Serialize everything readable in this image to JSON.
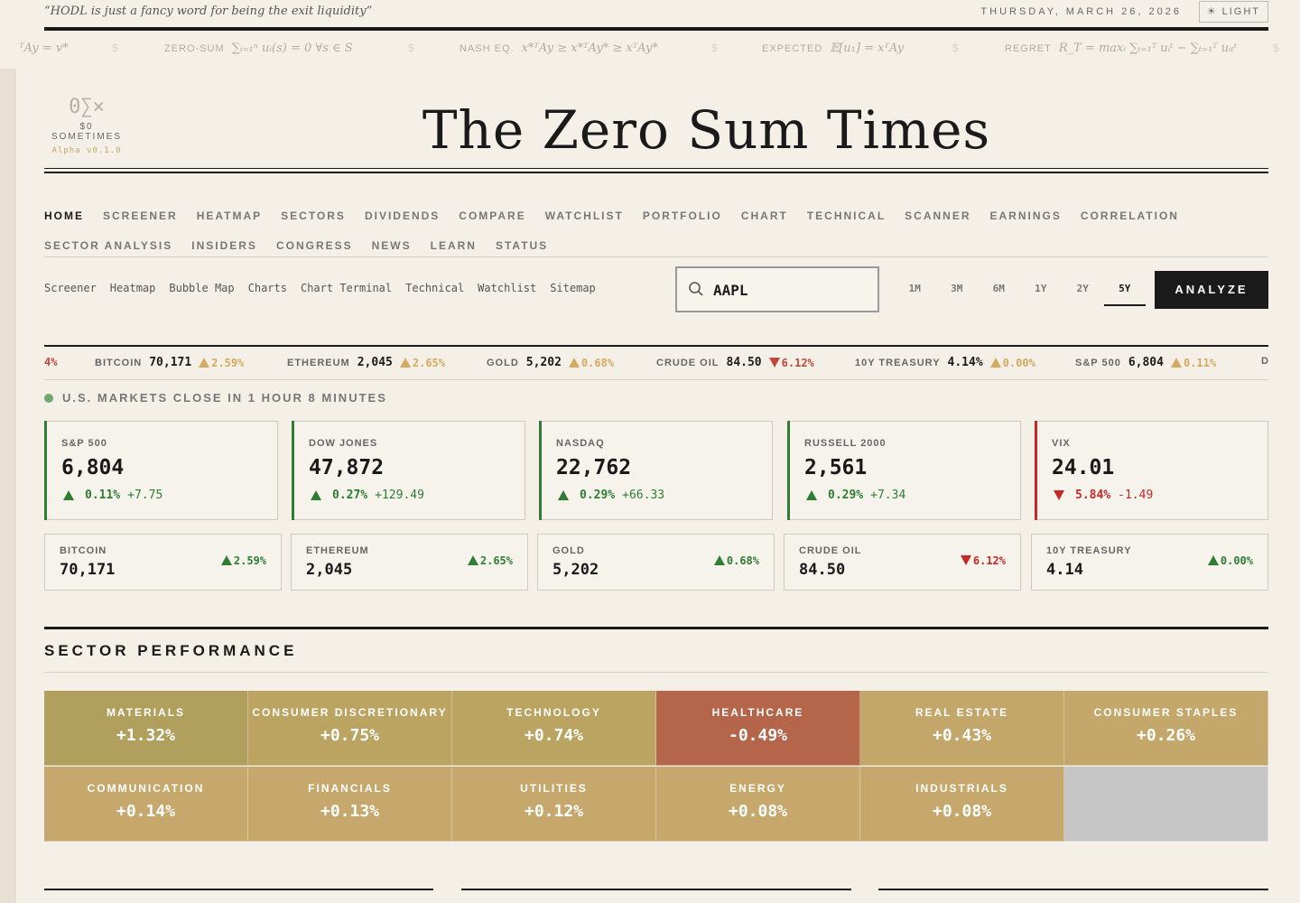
{
  "header": {
    "quote": "“HODL is just a fancy word for being the exit liquidity”",
    "date": "THURSDAY, MARCH 26, 2026",
    "theme_toggle": "☀ LIGHT"
  },
  "formulas": [
    {
      "label": "",
      "eq": "ᵀAy = v*"
    },
    {
      "label": "ZERO-SUM",
      "eq": "∑ᵢ₌₁ⁿ uᵢ(s) = 0 ∀s ∈ S"
    },
    {
      "label": "NASH EQ.",
      "eq": "x*ᵀAy ≥ x*ᵀAy* ≥ xᵀAy*"
    },
    {
      "label": "EXPECTED",
      "eq": "𝔼[u₁] = xᵀAy"
    },
    {
      "label": "REGRET",
      "eq": "R_T = maxᵢ ∑ₜ₌₁ᵀ uᵢᵗ − ∑ₜ₌₁ᵀ uᵢₜᵗ"
    }
  ],
  "formula_separator": "$",
  "logo": {
    "glyph": "0∑×",
    "name": "$0 SOMETIMES",
    "version": "Alpha v0.1.0"
  },
  "masthead": {
    "title": "The Zero Sum Times"
  },
  "nav": {
    "row1": [
      "HOME",
      "SCREENER",
      "HEATMAP",
      "SECTORS",
      "DIVIDENDS",
      "COMPARE",
      "WATCHLIST",
      "PORTFOLIO",
      "CHART",
      "TECHNICAL",
      "SCANNER",
      "EARNINGS",
      "CORRELATION"
    ],
    "row2": [
      "SECTOR ANALYSIS",
      "INSIDERS",
      "CONGRESS",
      "NEWS",
      "LEARN",
      "STATUS"
    ],
    "active": "HOME"
  },
  "subnav": [
    "Screener",
    "Heatmap",
    "Bubble Map",
    "Charts",
    "Chart Terminal",
    "Technical",
    "Watchlist",
    "Sitemap"
  ],
  "search": {
    "value": "AAPL",
    "icon": "search-icon"
  },
  "ranges": {
    "items": [
      "1M",
      "3M",
      "6M",
      "1Y",
      "2Y",
      "5Y"
    ],
    "active": "5Y"
  },
  "analyze_label": "ANALYZE",
  "ticker": {
    "lead_fragment": "4%",
    "items": [
      {
        "name": "BITCOIN",
        "value": "70,171",
        "change": "2.59%",
        "dir": "up"
      },
      {
        "name": "ETHEREUM",
        "value": "2,045",
        "change": "2.65%",
        "dir": "up"
      },
      {
        "name": "GOLD",
        "value": "5,202",
        "change": "0.68%",
        "dir": "up"
      },
      {
        "name": "CRUDE OIL",
        "value": "84.50",
        "change": "6.12%",
        "dir": "down"
      },
      {
        "name": "10Y TREASURY",
        "value": "4.14%",
        "change": "0.00%",
        "dir": "up"
      },
      {
        "name": "S&P 500",
        "value": "6,804",
        "change": "0.11%",
        "dir": "up"
      }
    ],
    "tail_fragment": "D"
  },
  "market_status": "U.S. MARKETS CLOSE IN 1 HOUR 8 MINUTES",
  "indices": [
    {
      "name": "S&P 500",
      "value": "6,804",
      "pct": "0.11%",
      "delta": "+7.75",
      "dir": "up"
    },
    {
      "name": "DOW JONES",
      "value": "47,872",
      "pct": "0.27%",
      "delta": "+129.49",
      "dir": "up"
    },
    {
      "name": "NASDAQ",
      "value": "22,762",
      "pct": "0.29%",
      "delta": "+66.33",
      "dir": "up"
    },
    {
      "name": "RUSSELL 2000",
      "value": "2,561",
      "pct": "0.29%",
      "delta": "+7.34",
      "dir": "up"
    },
    {
      "name": "VIX",
      "value": "24.01",
      "pct": "5.84%",
      "delta": "-1.49",
      "dir": "down"
    }
  ],
  "assets": [
    {
      "name": "BITCOIN",
      "value": "70,171",
      "change": "2.59%",
      "dir": "up"
    },
    {
      "name": "ETHEREUM",
      "value": "2,045",
      "change": "2.65%",
      "dir": "up"
    },
    {
      "name": "GOLD",
      "value": "5,202",
      "change": "0.68%",
      "dir": "up"
    },
    {
      "name": "CRUDE OIL",
      "value": "84.50",
      "change": "6.12%",
      "dir": "down"
    },
    {
      "name": "10Y TREASURY",
      "value": "4.14",
      "change": "0.00%",
      "dir": "up"
    }
  ],
  "sectors": {
    "title": "SECTOR PERFORMANCE",
    "items": [
      {
        "name": "MATERIALS",
        "value": "+1.32%",
        "color": "#b09f5d"
      },
      {
        "name": "CONSUMER DISCRETIONARY",
        "value": "+0.75%",
        "color": "#bba462"
      },
      {
        "name": "TECHNOLOGY",
        "value": "+0.74%",
        "color": "#bba462"
      },
      {
        "name": "HEALTHCARE",
        "value": "-0.49%",
        "color": "#b5664a"
      },
      {
        "name": "REAL ESTATE",
        "value": "+0.43%",
        "color": "#c2a66a"
      },
      {
        "name": "CONSUMER STAPLES",
        "value": "+0.26%",
        "color": "#c4a76b"
      },
      {
        "name": "COMMUNICATION",
        "value": "+0.14%",
        "color": "#c7a86c"
      },
      {
        "name": "FINANCIALS",
        "value": "+0.13%",
        "color": "#c7a86c"
      },
      {
        "name": "UTILITIES",
        "value": "+0.12%",
        "color": "#c7a86c"
      },
      {
        "name": "ENERGY",
        "value": "+0.08%",
        "color": "#c7a86c"
      },
      {
        "name": "INDUSTRIALS",
        "value": "+0.08%",
        "color": "#c7a86c"
      }
    ],
    "empty_color": "#c6c6c6"
  },
  "colors": {
    "up_green": "#2e7d32",
    "down_red": "#c62828",
    "ticker_up": "#d5a95f",
    "ticker_down": "#c2453a",
    "ink": "#1a1a1a",
    "paper": "#f4f0e8"
  }
}
